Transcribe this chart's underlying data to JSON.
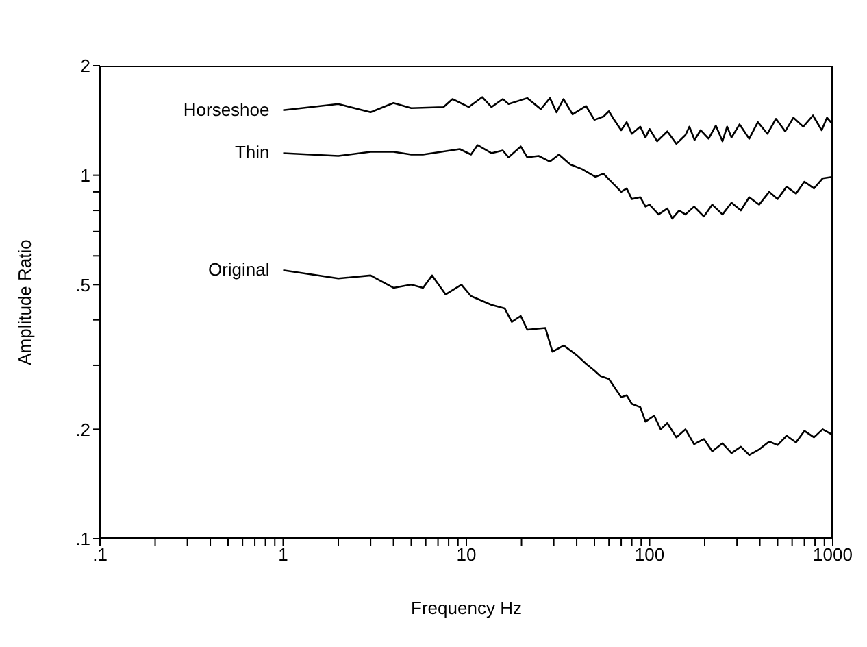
{
  "chart_data": {
    "type": "line",
    "xlabel": "Frequency Hz",
    "ylabel": "Amplitude Ratio",
    "log": "xy",
    "marker": "none",
    "line_style": "solid",
    "xlim": [
      0.1,
      1000
    ],
    "ylim": [
      0.1,
      2
    ],
    "xticks": [
      {
        "value": 0.1,
        "label": ".1"
      },
      {
        "value": 0.2,
        "label": null
      },
      {
        "value": 0.3,
        "label": null
      },
      {
        "value": 0.4,
        "label": null
      },
      {
        "value": 0.5,
        "label": null
      },
      {
        "value": 0.6,
        "label": null
      },
      {
        "value": 0.7,
        "label": null
      },
      {
        "value": 0.8,
        "label": null
      },
      {
        "value": 0.9,
        "label": null
      },
      1,
      {
        "value": 2,
        "label": null
      },
      {
        "value": 3,
        "label": null
      },
      {
        "value": 4,
        "label": null
      },
      {
        "value": 5,
        "label": null
      },
      {
        "value": 6,
        "label": null
      },
      {
        "value": 7,
        "label": null
      },
      {
        "value": 8,
        "label": null
      },
      {
        "value": 9,
        "label": null
      },
      10,
      {
        "value": 20,
        "label": null
      },
      {
        "value": 30,
        "label": null
      },
      {
        "value": 40,
        "label": null
      },
      {
        "value": 50,
        "label": null
      },
      {
        "value": 60,
        "label": null
      },
      {
        "value": 70,
        "label": null
      },
      {
        "value": 80,
        "label": null
      },
      {
        "value": 90,
        "label": null
      },
      100,
      {
        "value": 200,
        "label": null
      },
      {
        "value": 300,
        "label": null
      },
      {
        "value": 400,
        "label": null
      },
      {
        "value": 500,
        "label": null
      },
      {
        "value": 600,
        "label": null
      },
      {
        "value": 700,
        "label": null
      },
      {
        "value": 800,
        "label": null
      },
      {
        "value": 900,
        "label": null
      },
      1000
    ],
    "yticks": [
      {
        "value": 0.1,
        "label": ".1"
      },
      {
        "value": 0.2,
        "label": ".2"
      },
      {
        "value": 0.3,
        "label": null
      },
      {
        "value": 0.4,
        "label": null
      },
      {
        "value": 0.5,
        "label": ".5"
      },
      {
        "value": 0.6,
        "label": null
      },
      {
        "value": 0.7,
        "label": null
      },
      {
        "value": 0.8,
        "label": null
      },
      {
        "value": 0.9,
        "label": null
      },
      1,
      2
    ],
    "series": [
      {
        "name": "Horseshoe",
        "color": "#000000",
        "x": [
          1,
          2,
          3,
          4,
          5,
          7.5,
          8.4,
          10.3,
          12.2,
          13.7,
          15.8,
          17,
          21.5,
          25.5,
          28.6,
          31,
          33.9,
          38,
          45,
          50,
          56,
          60,
          63,
          70,
          75,
          80,
          89,
          95,
          100,
          110,
          125,
          140,
          157,
          165,
          176,
          190,
          210,
          230,
          250,
          265,
          280,
          310,
          350,
          390,
          440,
          490,
          550,
          610,
          690,
          780,
          870,
          930,
          1000
        ],
        "values": [
          1.51,
          1.57,
          1.49,
          1.58,
          1.53,
          1.54,
          1.62,
          1.54,
          1.64,
          1.54,
          1.62,
          1.57,
          1.63,
          1.52,
          1.63,
          1.49,
          1.62,
          1.47,
          1.55,
          1.42,
          1.45,
          1.5,
          1.44,
          1.33,
          1.4,
          1.3,
          1.36,
          1.27,
          1.34,
          1.24,
          1.32,
          1.22,
          1.29,
          1.36,
          1.25,
          1.33,
          1.26,
          1.37,
          1.24,
          1.36,
          1.27,
          1.38,
          1.26,
          1.4,
          1.3,
          1.43,
          1.32,
          1.44,
          1.36,
          1.46,
          1.33,
          1.44,
          1.38
        ]
      },
      {
        "name": "Thin",
        "color": "#000000",
        "x": [
          1,
          2,
          3,
          4,
          5,
          5.8,
          7.3,
          9.2,
          10.6,
          11.5,
          13.7,
          15.8,
          17,
          19.8,
          21.5,
          24.8,
          28.6,
          32,
          36.9,
          42.7,
          50.6,
          56,
          63,
          70,
          75,
          80,
          89,
          95,
          100,
          112,
          125,
          133,
          145,
          157,
          175,
          198,
          220,
          250,
          280,
          315,
          350,
          396,
          450,
          500,
          560,
          630,
          700,
          790,
          880,
          1000
        ],
        "values": [
          1.15,
          1.13,
          1.16,
          1.16,
          1.14,
          1.14,
          1.16,
          1.18,
          1.14,
          1.21,
          1.15,
          1.17,
          1.12,
          1.2,
          1.12,
          1.13,
          1.09,
          1.14,
          1.07,
          1.04,
          0.99,
          1.01,
          0.95,
          0.9,
          0.92,
          0.86,
          0.87,
          0.82,
          0.83,
          0.78,
          0.81,
          0.76,
          0.8,
          0.78,
          0.82,
          0.77,
          0.83,
          0.78,
          0.84,
          0.8,
          0.87,
          0.83,
          0.9,
          0.86,
          0.93,
          0.89,
          0.96,
          0.92,
          0.98,
          0.99
        ]
      },
      {
        "name": "Original",
        "color": "#000000",
        "x": [
          1,
          2,
          3,
          4,
          5,
          5.8,
          6.5,
          7.7,
          9.4,
          10.6,
          13.7,
          16.2,
          17.7,
          19.8,
          21.5,
          27,
          29.5,
          34,
          40,
          45,
          50,
          54,
          60,
          63,
          70,
          75,
          80,
          89,
          95,
          106,
          115,
          125,
          140,
          157,
          175,
          198,
          220,
          250,
          280,
          315,
          350,
          396,
          450,
          500,
          560,
          630,
          700,
          790,
          880,
          1000
        ],
        "values": [
          0.548,
          0.52,
          0.53,
          0.49,
          0.5,
          0.49,
          0.53,
          0.47,
          0.5,
          0.465,
          0.44,
          0.43,
          0.395,
          0.41,
          0.376,
          0.38,
          0.327,
          0.34,
          0.32,
          0.303,
          0.29,
          0.28,
          0.275,
          0.265,
          0.245,
          0.248,
          0.235,
          0.23,
          0.21,
          0.218,
          0.2,
          0.208,
          0.19,
          0.2,
          0.182,
          0.188,
          0.174,
          0.183,
          0.172,
          0.179,
          0.17,
          0.176,
          0.185,
          0.181,
          0.192,
          0.184,
          0.198,
          0.19,
          0.2,
          0.193
        ]
      }
    ]
  }
}
